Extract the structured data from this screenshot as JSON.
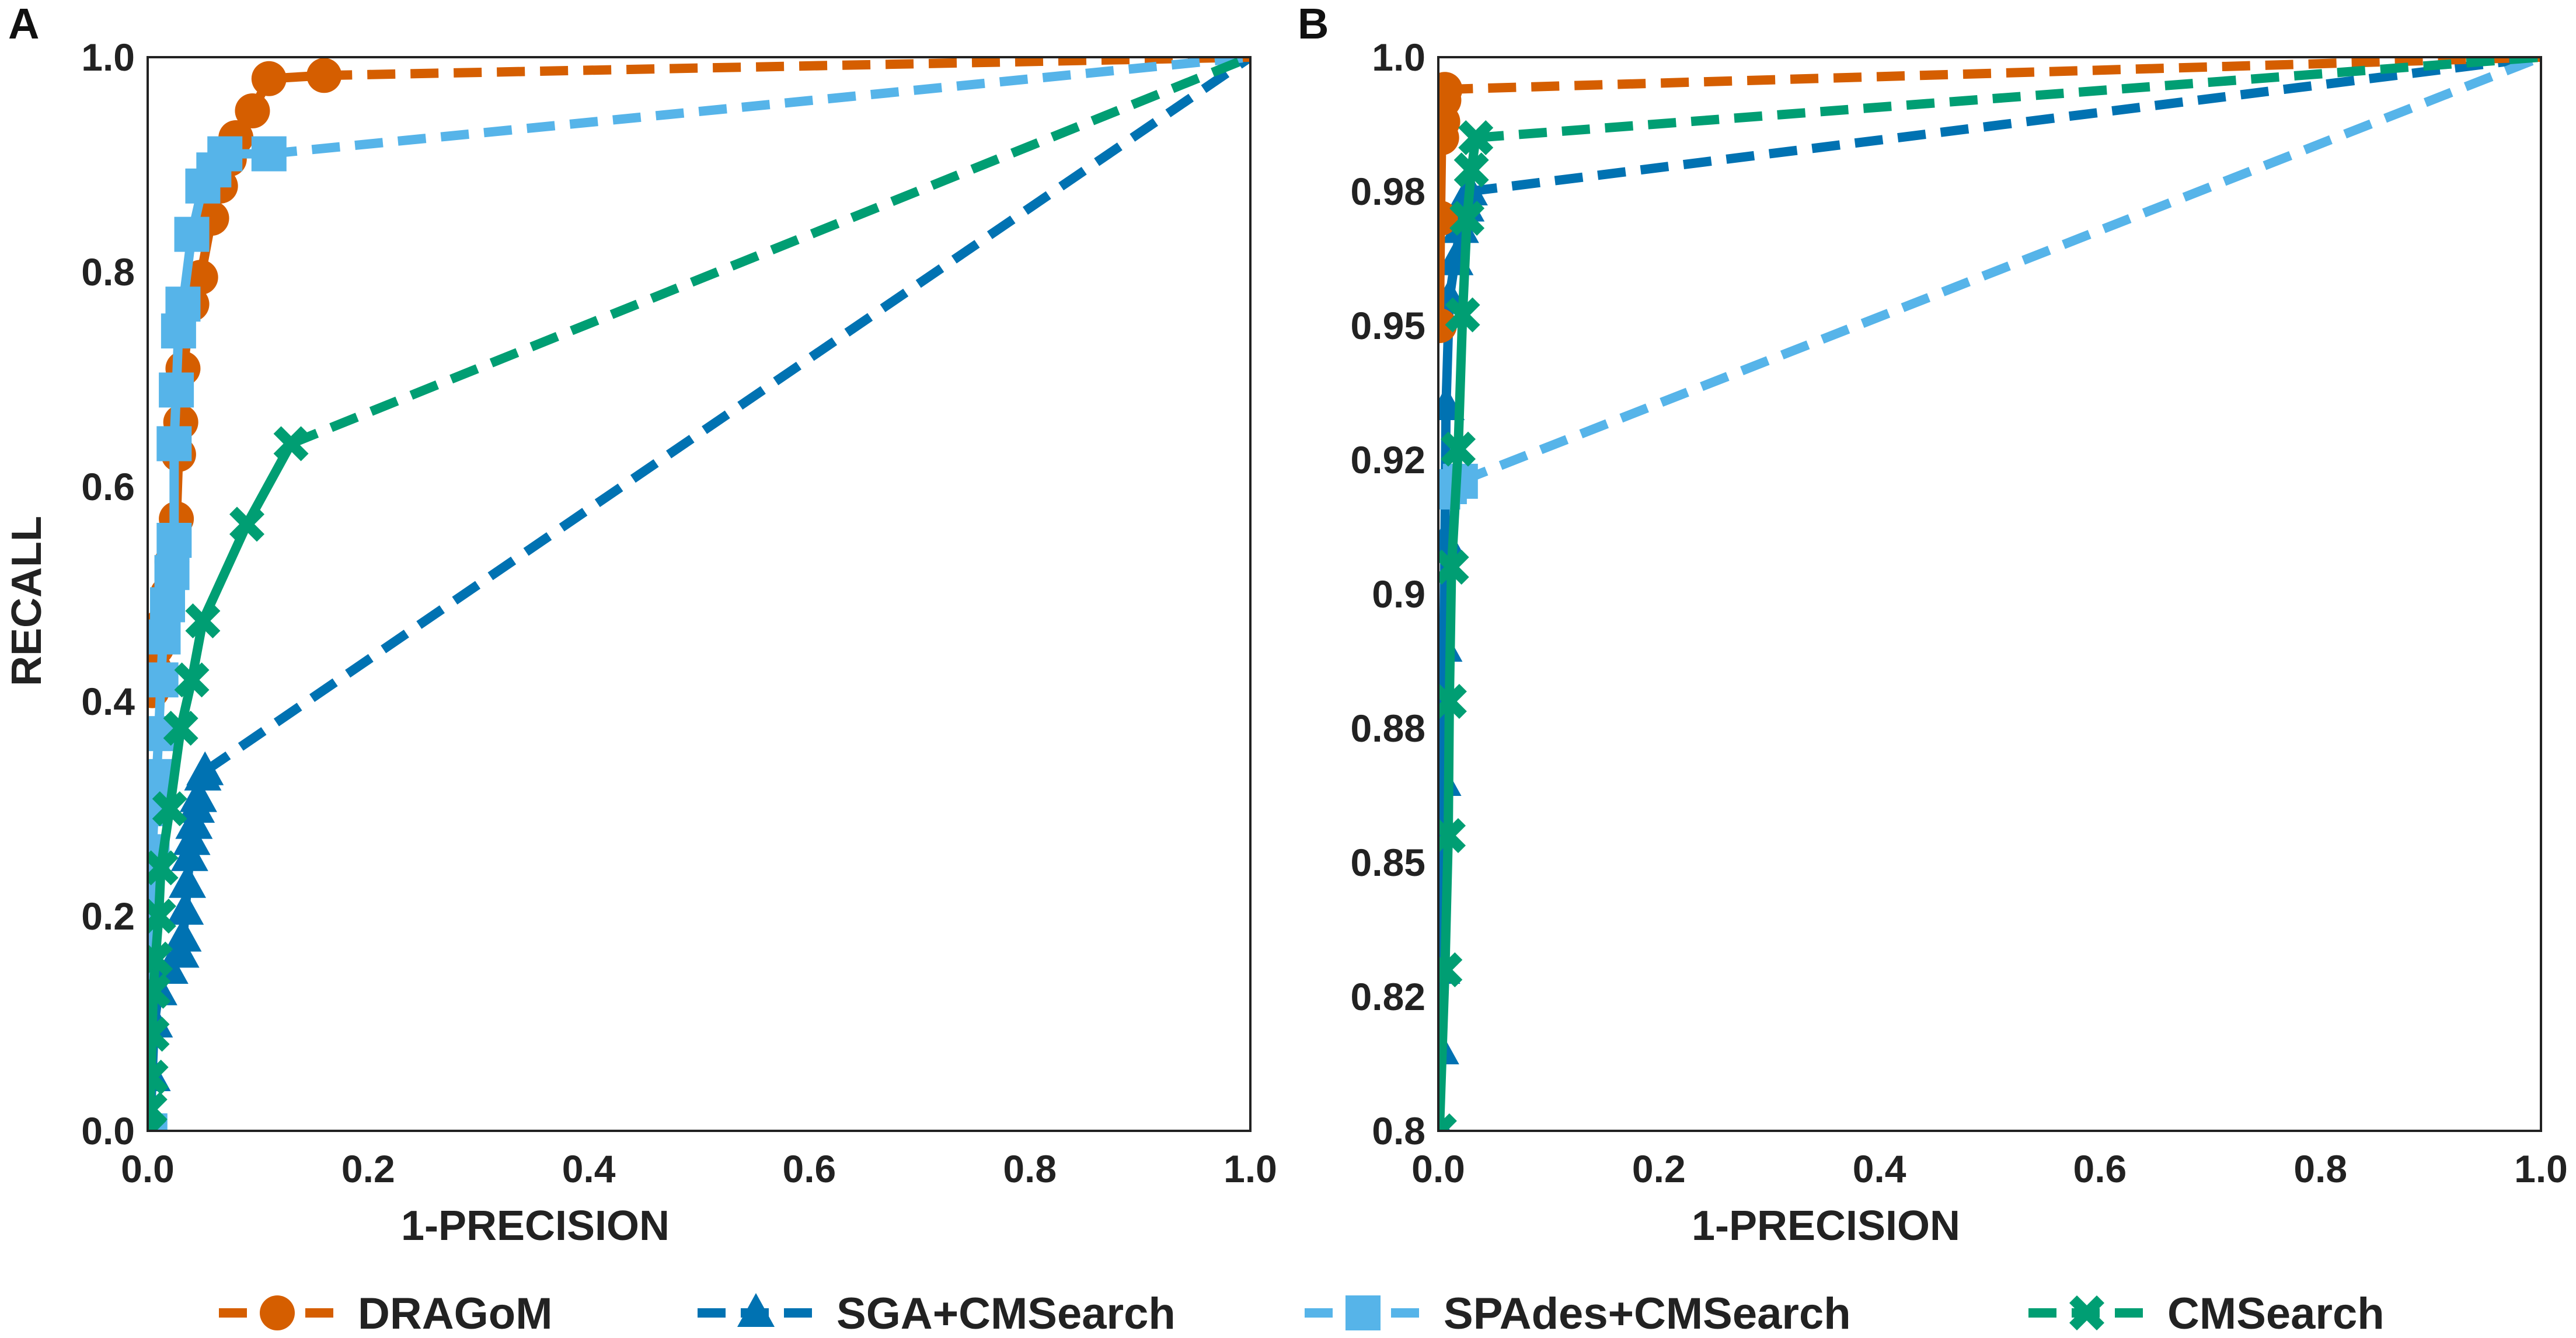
{
  "chart_data": [
    {
      "type": "line",
      "panel_label": "A",
      "xlabel": "1-PRECISION",
      "ylabel": "RECALL",
      "xlim": [
        0,
        1
      ],
      "ylim": [
        0,
        1
      ],
      "x_ticks": [
        {
          "value": 0.0,
          "label": "0.0"
        },
        {
          "value": 0.2,
          "label": "0.2"
        },
        {
          "value": 0.4,
          "label": "0.4"
        },
        {
          "value": 0.6,
          "label": "0.6"
        },
        {
          "value": 0.8,
          "label": "0.8"
        },
        {
          "value": 1.0,
          "label": "1.0"
        }
      ],
      "y_ticks": [
        {
          "value": 0.0,
          "label": "0.0"
        },
        {
          "value": 0.2,
          "label": "0.2"
        },
        {
          "value": 0.4,
          "label": "0.4"
        },
        {
          "value": 0.6,
          "label": "0.6"
        },
        {
          "value": 0.8,
          "label": "0.8"
        },
        {
          "value": 1.0,
          "label": "1.0"
        }
      ],
      "grid": false,
      "series": [
        {
          "name": "DRAGoM",
          "points": [
            [
              0.004,
              0.41
            ],
            [
              0.006,
              0.43
            ],
            [
              0.008,
              0.45
            ],
            [
              0.012,
              0.47
            ],
            [
              0.018,
              0.5
            ],
            [
              0.022,
              0.53
            ],
            [
              0.026,
              0.57
            ],
            [
              0.028,
              0.63
            ],
            [
              0.03,
              0.66
            ],
            [
              0.032,
              0.71
            ],
            [
              0.04,
              0.77
            ],
            [
              0.048,
              0.795
            ],
            [
              0.058,
              0.85
            ],
            [
              0.066,
              0.88
            ],
            [
              0.074,
              0.905
            ],
            [
              0.08,
              0.925
            ],
            [
              0.095,
              0.95
            ],
            [
              0.11,
              0.98
            ],
            [
              0.16,
              0.983
            ]
          ],
          "tail": [
            [
              0.16,
              0.983
            ],
            [
              1.0,
              1.0
            ]
          ]
        },
        {
          "name": "SGA+CMSearch",
          "points": [
            [
              0.002,
              0.0
            ],
            [
              0.004,
              0.05
            ],
            [
              0.006,
              0.1
            ],
            [
              0.01,
              0.13
            ],
            [
              0.02,
              0.15
            ],
            [
              0.03,
              0.165
            ],
            [
              0.032,
              0.18
            ],
            [
              0.034,
              0.205
            ],
            [
              0.036,
              0.23
            ],
            [
              0.038,
              0.255
            ],
            [
              0.04,
              0.27
            ],
            [
              0.042,
              0.285
            ],
            [
              0.044,
              0.3
            ],
            [
              0.046,
              0.31
            ],
            [
              0.05,
              0.33
            ],
            [
              0.052,
              0.335
            ]
          ],
          "tail": [
            [
              0.052,
              0.335
            ],
            [
              1.0,
              1.0
            ]
          ]
        },
        {
          "name": "SPAdes+CMSearch",
          "points": [
            [
              0.002,
              0.0
            ],
            [
              0.004,
              0.26
            ],
            [
              0.006,
              0.3
            ],
            [
              0.008,
              0.33
            ],
            [
              0.01,
              0.37
            ],
            [
              0.012,
              0.42
            ],
            [
              0.014,
              0.46
            ],
            [
              0.018,
              0.49
            ],
            [
              0.022,
              0.52
            ],
            [
              0.024,
              0.55
            ],
            [
              0.024,
              0.64
            ],
            [
              0.026,
              0.69
            ],
            [
              0.028,
              0.745
            ],
            [
              0.032,
              0.77
            ],
            [
              0.04,
              0.835
            ],
            [
              0.05,
              0.88
            ],
            [
              0.06,
              0.895
            ],
            [
              0.07,
              0.91
            ],
            [
              0.11,
              0.91
            ]
          ],
          "tail": [
            [
              0.11,
              0.91
            ],
            [
              1.0,
              1.0
            ]
          ]
        },
        {
          "name": "CMSearch",
          "points": [
            [
              0.001,
              0.0
            ],
            [
              0.002,
              0.02
            ],
            [
              0.003,
              0.05
            ],
            [
              0.004,
              0.09
            ],
            [
              0.005,
              0.13
            ],
            [
              0.007,
              0.16
            ],
            [
              0.01,
              0.2
            ],
            [
              0.012,
              0.245
            ],
            [
              0.02,
              0.3
            ],
            [
              0.03,
              0.375
            ],
            [
              0.04,
              0.42
            ],
            [
              0.05,
              0.475
            ],
            [
              0.09,
              0.565
            ],
            [
              0.13,
              0.64
            ]
          ],
          "tail": [
            [
              0.13,
              0.64
            ],
            [
              1.0,
              1.0
            ]
          ]
        }
      ]
    },
    {
      "type": "line",
      "panel_label": "B",
      "xlabel": "1-PRECISION",
      "ylabel": "",
      "xlim": [
        0,
        1
      ],
      "ylim": [
        0.8,
        1.0
      ],
      "x_ticks": [
        {
          "value": 0.0,
          "label": "0.0"
        },
        {
          "value": 0.2,
          "label": "0.2"
        },
        {
          "value": 0.4,
          "label": "0.4"
        },
        {
          "value": 0.6,
          "label": "0.6"
        },
        {
          "value": 0.8,
          "label": "0.8"
        },
        {
          "value": 1.0,
          "label": "1.0"
        }
      ],
      "y_ticks": [
        {
          "value": 0.8,
          "label": "0.8"
        },
        {
          "value": 0.825,
          "label": "0.82"
        },
        {
          "value": 0.85,
          "label": "0.85"
        },
        {
          "value": 0.875,
          "label": "0.88"
        },
        {
          "value": 0.9,
          "label": "0.9"
        },
        {
          "value": 0.925,
          "label": "0.92"
        },
        {
          "value": 0.95,
          "label": "0.95"
        },
        {
          "value": 0.975,
          "label": "0.98"
        },
        {
          "value": 1.0,
          "label": "1.0"
        }
      ],
      "grid": false,
      "series": [
        {
          "name": "DRAGoM",
          "points": [
            [
              0.001,
              0.95
            ],
            [
              0.002,
              0.97
            ],
            [
              0.003,
              0.985
            ],
            [
              0.004,
              0.988
            ],
            [
              0.005,
              0.992
            ],
            [
              0.006,
              0.994
            ]
          ],
          "tail": [
            [
              0.006,
              0.994
            ],
            [
              1.0,
              1.0
            ]
          ]
        },
        {
          "name": "SGA+CMSearch",
          "points": [
            [
              0.001,
              0.8
            ],
            [
              0.002,
              0.815
            ],
            [
              0.003,
              0.83
            ],
            [
              0.004,
              0.865
            ],
            [
              0.005,
              0.89
            ],
            [
              0.006,
              0.91
            ],
            [
              0.007,
              0.935
            ],
            [
              0.01,
              0.955
            ],
            [
              0.015,
              0.962
            ],
            [
              0.02,
              0.968
            ],
            [
              0.025,
              0.972
            ],
            [
              0.028,
              0.975
            ]
          ],
          "tail": [
            [
              0.028,
              0.975
            ],
            [
              1.0,
              1.0
            ]
          ]
        },
        {
          "name": "SPAdes+CMSearch",
          "points": [
            [
              0.004,
              0.919
            ],
            [
              0.01,
              0.92
            ],
            [
              0.02,
              0.921
            ]
          ],
          "tail": [
            [
              0.02,
              0.921
            ],
            [
              1.0,
              1.0
            ]
          ]
        },
        {
          "name": "CMSearch",
          "points": [
            [
              0.001,
              0.8
            ],
            [
              0.006,
              0.83
            ],
            [
              0.009,
              0.855
            ],
            [
              0.01,
              0.88
            ],
            [
              0.012,
              0.905
            ],
            [
              0.018,
              0.927
            ],
            [
              0.022,
              0.952
            ],
            [
              0.026,
              0.97
            ],
            [
              0.03,
              0.979
            ],
            [
              0.034,
              0.985
            ]
          ],
          "tail": [
            [
              0.034,
              0.985
            ],
            [
              1.0,
              1.0
            ]
          ]
        }
      ]
    }
  ],
  "legend": {
    "position": "bottom-center",
    "items": [
      {
        "name": "DRAGoM",
        "color": "#D55E00",
        "marker": "circle"
      },
      {
        "name": "SGA+CMSearch",
        "color": "#0072B2",
        "marker": "triangle"
      },
      {
        "name": "SPAdes+CMSearch",
        "color": "#56B4E9",
        "marker": "square"
      },
      {
        "name": "CMSearch",
        "color": "#009E73",
        "marker": "x"
      }
    ]
  },
  "series_colors": {
    "DRAGoM": "#D55E00",
    "SGA+CMSearch": "#0072B2",
    "SPAdes+CMSearch": "#56B4E9",
    "CMSearch": "#009E73"
  },
  "series_markers": {
    "DRAGoM": "circle",
    "SGA+CMSearch": "triangle",
    "SPAdes+CMSearch": "square",
    "CMSearch": "x"
  },
  "draw_order": [
    "SGA+CMSearch",
    "DRAGoM",
    "SPAdes+CMSearch",
    "CMSearch"
  ]
}
